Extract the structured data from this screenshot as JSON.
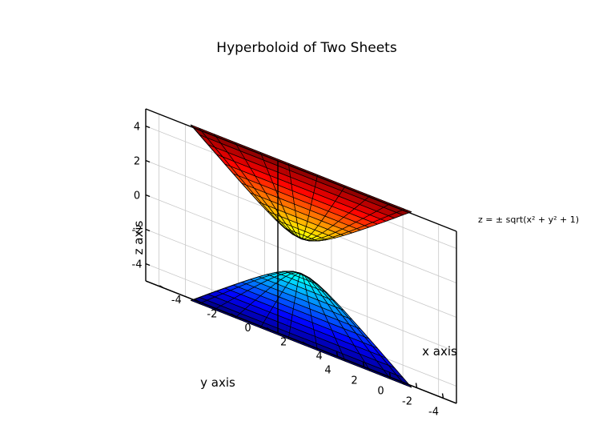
{
  "chart_data": {
    "type": "surface",
    "title": "Hyperboloid of Two Sheets",
    "xlabel": "x axis",
    "ylabel": "y axis",
    "zlabel": "z axis",
    "annotation": "z = ± sqrt(x² + y² + 1)",
    "xlim": [
      -5,
      5
    ],
    "ylim": [
      -5,
      5
    ],
    "zlim": [
      -5,
      5
    ],
    "x_ticks": [
      "-4",
      "-2",
      "0",
      "2",
      "4"
    ],
    "y_ticks": [
      "-4",
      "-2",
      "0",
      "2",
      "4"
    ],
    "z_ticks": [
      "-4",
      "-2",
      "0",
      "2",
      "4"
    ],
    "grid": true,
    "colormap": "jet",
    "series": [
      {
        "name": "",
        "sign": 1,
        "r_max": 5,
        "radial_steps": 13,
        "angular_steps": 24
      },
      {
        "name": "",
        "sign": -1,
        "r_max": 5,
        "radial_steps": 13,
        "angular_steps": 24
      }
    ]
  }
}
